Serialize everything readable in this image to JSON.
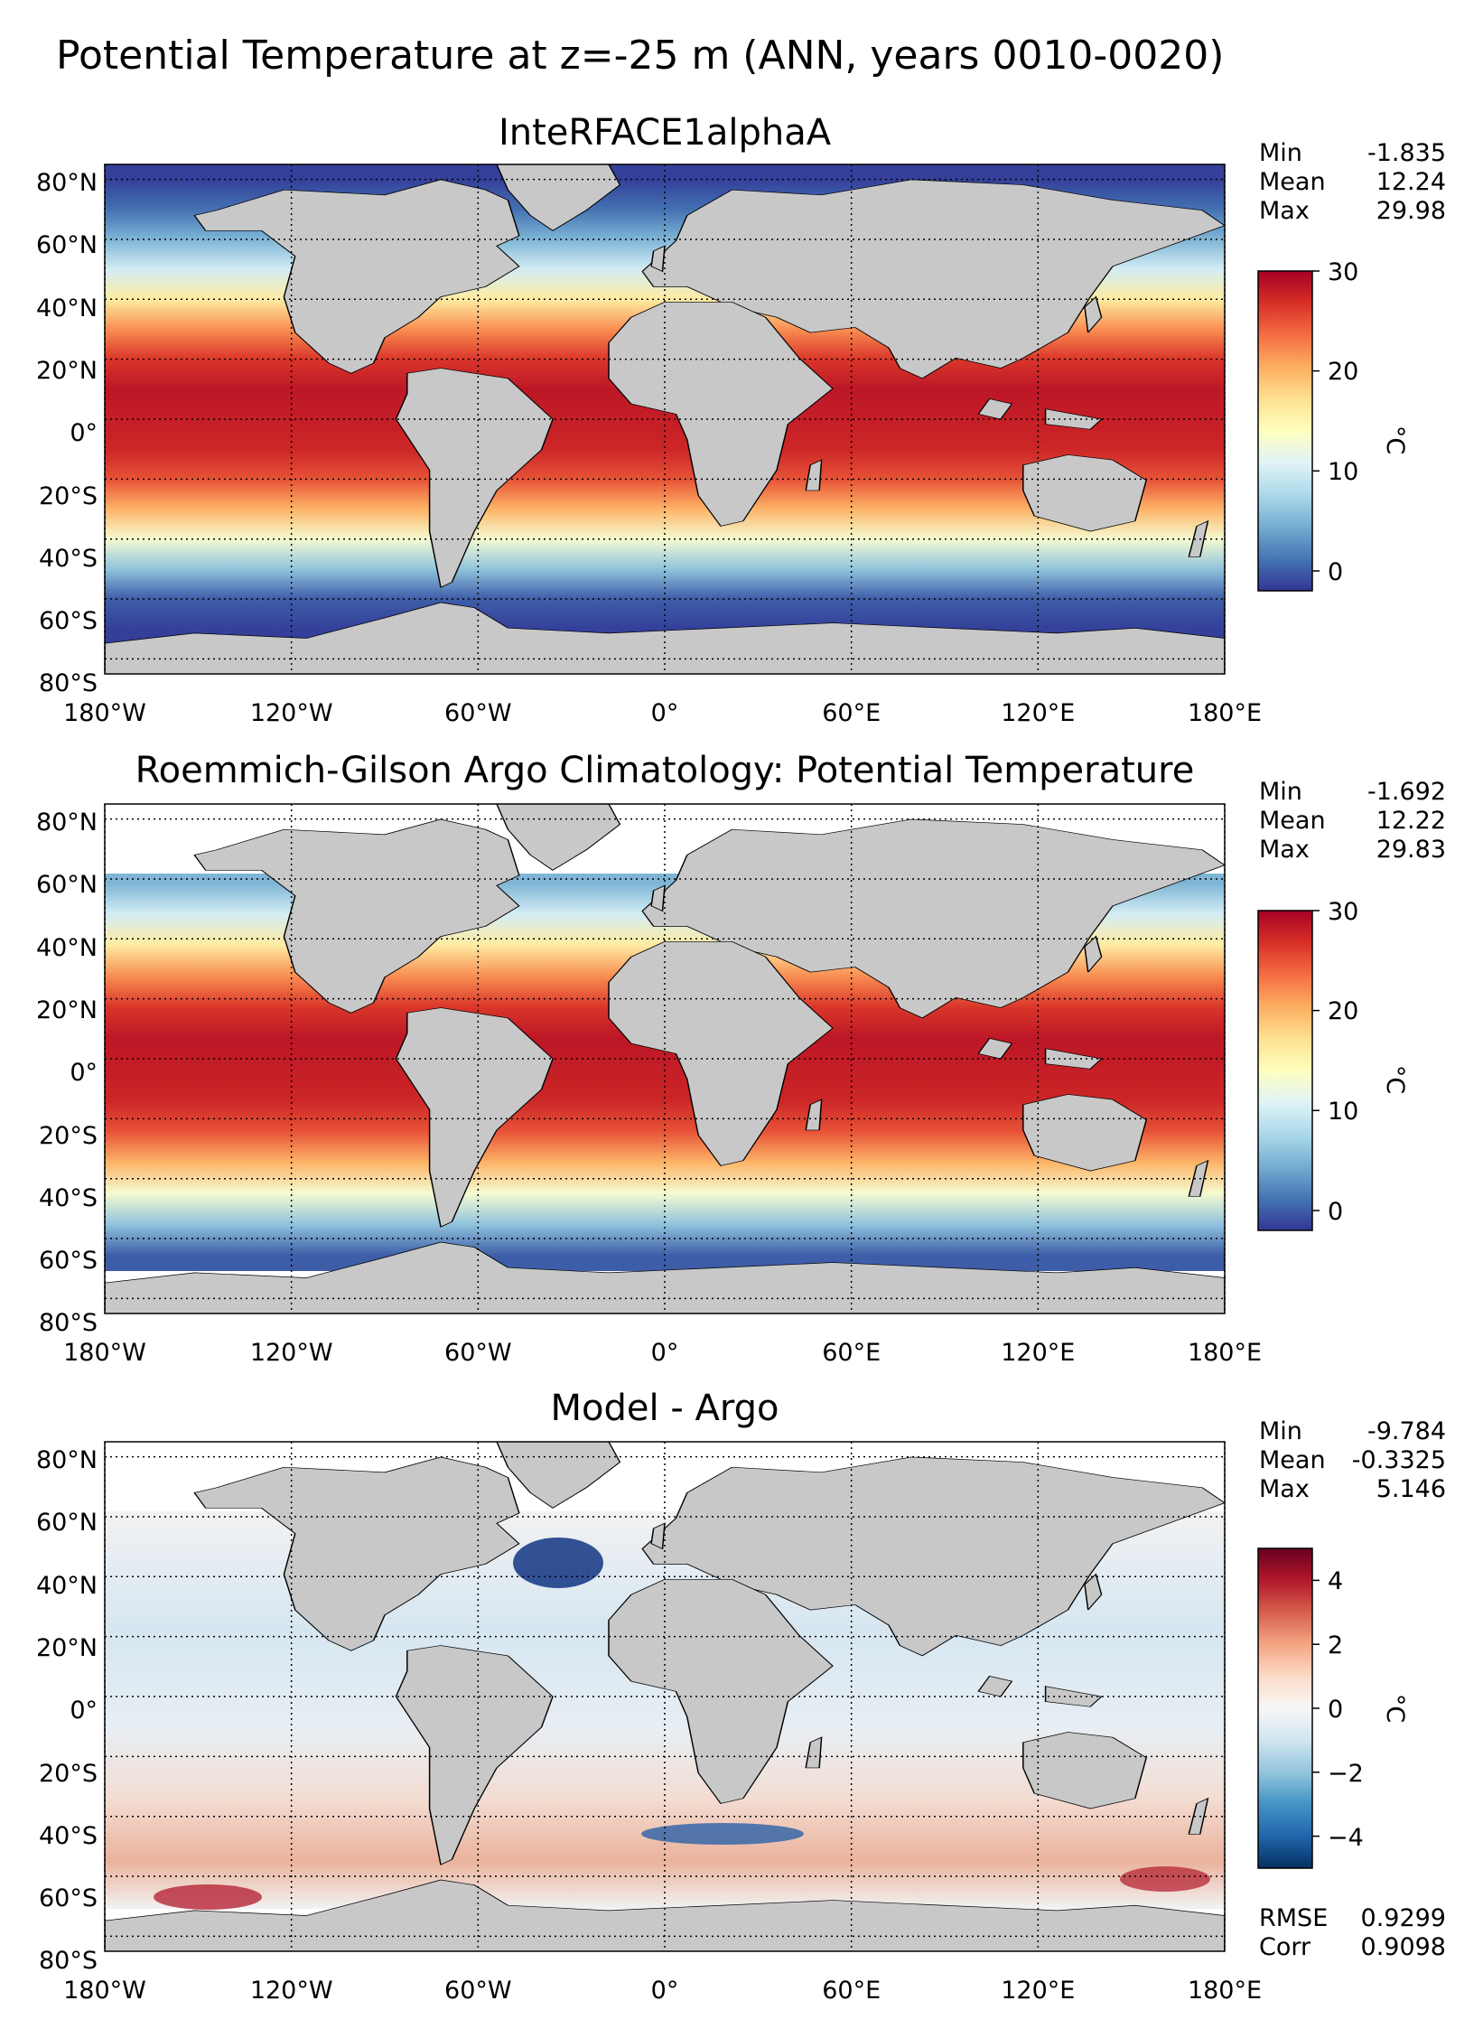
{
  "figure": {
    "title": "Potential Temperature at z=-25 m (ANN, years 0010-0020)"
  },
  "axis_ticks": {
    "lat": [
      "80°N",
      "60°N",
      "40°N",
      "20°N",
      "0°",
      "20°S",
      "40°S",
      "60°S",
      "80°S"
    ],
    "lon": [
      "180°W",
      "120°W",
      "60°W",
      "0°",
      "60°E",
      "120°E",
      "180°E"
    ]
  },
  "colors": {
    "land": "#c8c8c8",
    "missing": "#ffffff",
    "coast": "#000000",
    "rdylbu_r": [
      "#313695",
      "#4575b4",
      "#74add1",
      "#abd9e9",
      "#e0f3f8",
      "#ffffbf",
      "#fee090",
      "#fdae61",
      "#f46d43",
      "#d73027",
      "#a50026"
    ],
    "rdbu_r": [
      "#053061",
      "#2166ac",
      "#4393c3",
      "#92c5de",
      "#d1e5f0",
      "#f7f7f7",
      "#fddbc7",
      "#f4a582",
      "#d6604d",
      "#b2182b",
      "#67001f"
    ]
  },
  "panels": [
    {
      "title": "InteRFACE1alphaA",
      "stats": [
        {
          "label": "Min",
          "value": "-1.835"
        },
        {
          "label": "Mean",
          "value": "12.24"
        },
        {
          "label": "Max",
          "value": "29.98"
        }
      ],
      "colorbar": {
        "ticks": [
          "30",
          "20",
          "10",
          "0"
        ],
        "unit": "°C",
        "cmap": "RdYlBu_r",
        "range": [
          -2,
          30
        ]
      }
    },
    {
      "title": "Roemmich-Gilson Argo Climatology: Potential Temperature",
      "stats": [
        {
          "label": "Min",
          "value": "-1.692"
        },
        {
          "label": "Mean",
          "value": "12.22"
        },
        {
          "label": "Max",
          "value": "29.83"
        }
      ],
      "colorbar": {
        "ticks": [
          "30",
          "20",
          "10",
          "0"
        ],
        "unit": "°C",
        "cmap": "RdYlBu_r",
        "range": [
          -2,
          30
        ]
      }
    },
    {
      "title": "Model - Argo",
      "stats": [
        {
          "label": "Min",
          "value": "-9.784"
        },
        {
          "label": "Mean",
          "value": "-0.3325"
        },
        {
          "label": "Max",
          "value": "5.146"
        }
      ],
      "extra_stats": [
        {
          "label": "RMSE",
          "value": "0.9299"
        },
        {
          "label": "Corr",
          "value": "0.9098"
        }
      ],
      "colorbar": {
        "ticks": [
          "4",
          "2",
          "0",
          "−2",
          "−4"
        ],
        "unit": "°C",
        "cmap": "RdBu_r",
        "range": [
          -5,
          5
        ]
      }
    }
  ],
  "chart_data": [
    {
      "type": "heatmap",
      "title": "InteRFACE1alphaA",
      "xlabel": "",
      "ylabel": "",
      "x_range": [
        -180,
        180
      ],
      "y_range": [
        -85,
        85
      ],
      "x_ticks": [
        -180,
        -120,
        -60,
        0,
        60,
        120,
        180
      ],
      "y_ticks": [
        80,
        60,
        40,
        20,
        0,
        -20,
        -40,
        -60,
        -80
      ],
      "colorbar": {
        "label": "°C",
        "range": [
          -2,
          30
        ],
        "ticks": [
          0,
          10,
          20,
          30
        ]
      },
      "stats": {
        "min": -1.835,
        "mean": 12.24,
        "max": 29.98
      },
      "zonal_profile": {
        "lat": [
          -80,
          -70,
          -60,
          -50,
          -40,
          -30,
          -20,
          -10,
          0,
          10,
          20,
          30,
          40,
          50,
          60,
          70,
          80
        ],
        "value": [
          -1.8,
          -1.5,
          0,
          6,
          13,
          20,
          25,
          27.5,
          28,
          28.5,
          26.5,
          22,
          16,
          10,
          5,
          1,
          -1.5
        ]
      }
    },
    {
      "type": "heatmap",
      "title": "Roemmich-Gilson Argo Climatology: Potential Temperature",
      "xlabel": "",
      "ylabel": "",
      "x_range": [
        -180,
        180
      ],
      "y_range": [
        -85,
        85
      ],
      "x_ticks": [
        -180,
        -120,
        -60,
        0,
        60,
        120,
        180
      ],
      "y_ticks": [
        80,
        60,
        40,
        20,
        0,
        -20,
        -40,
        -60,
        -80
      ],
      "colorbar": {
        "label": "°C",
        "range": [
          -2,
          30
        ],
        "ticks": [
          0,
          10,
          20,
          30
        ]
      },
      "stats": {
        "min": -1.692,
        "mean": 12.22,
        "max": 29.83
      },
      "zonal_profile": {
        "lat": [
          -60,
          -50,
          -40,
          -30,
          -20,
          -10,
          0,
          10,
          20,
          30,
          40,
          50,
          60
        ],
        "value": [
          0,
          6,
          13,
          20,
          25,
          27.5,
          28,
          28.5,
          26.5,
          22,
          16,
          10,
          5
        ]
      }
    },
    {
      "type": "heatmap",
      "title": "Model - Argo",
      "xlabel": "",
      "ylabel": "",
      "x_range": [
        -180,
        180
      ],
      "y_range": [
        -85,
        85
      ],
      "x_ticks": [
        -180,
        -120,
        -60,
        0,
        60,
        120,
        180
      ],
      "y_ticks": [
        80,
        60,
        40,
        20,
        0,
        -20,
        -40,
        -60,
        -80
      ],
      "colorbar": {
        "label": "°C",
        "range": [
          -5,
          5
        ],
        "ticks": [
          -4,
          -2,
          0,
          2,
          4
        ]
      },
      "stats": {
        "min": -9.784,
        "mean": -0.3325,
        "max": 5.146,
        "rmse": 0.9299,
        "corr": 0.9098
      }
    }
  ]
}
